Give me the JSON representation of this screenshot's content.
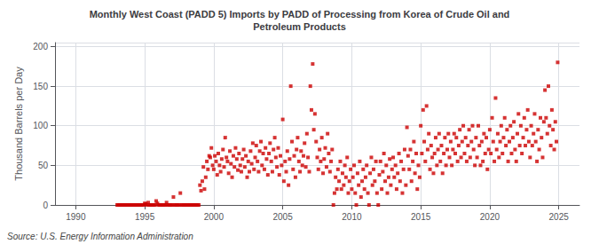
{
  "chart_data": {
    "type": "scatter",
    "title": "Monthly West Coast (PADD 5) Imports by PADD of Processing from Korea of Crude Oil and\nPetroleum Products",
    "ylabel": "Thousand Barrels per Day",
    "annotations": [
      "Source: U.S. Energy Information Administration"
    ],
    "color": "#cc0000",
    "marker": "square",
    "grid": true,
    "xlim": [
      1988.5,
      2026.5
    ],
    "ylim": [
      0,
      205
    ],
    "xticks": [
      1990,
      1995,
      2000,
      2005,
      2010,
      2015,
      2020,
      2025
    ],
    "yticks": [
      0,
      50,
      100,
      150,
      200
    ],
    "x": [
      1993.0,
      1993.08,
      1993.17,
      1993.25,
      1993.33,
      1993.42,
      1993.5,
      1993.58,
      1993.67,
      1993.75,
      1993.83,
      1993.92,
      1994.0,
      1994.08,
      1994.17,
      1994.25,
      1994.33,
      1994.42,
      1994.5,
      1994.58,
      1994.67,
      1994.75,
      1994.83,
      1994.92,
      1995.0,
      1995.08,
      1995.17,
      1995.25,
      1995.33,
      1995.42,
      1995.5,
      1995.58,
      1995.67,
      1995.75,
      1995.83,
      1995.92,
      1996.0,
      1996.08,
      1996.17,
      1996.25,
      1996.33,
      1996.42,
      1996.5,
      1996.58,
      1996.67,
      1996.75,
      1996.83,
      1996.92,
      1997.0,
      1997.08,
      1997.17,
      1997.25,
      1997.33,
      1997.42,
      1997.5,
      1997.58,
      1997.67,
      1997.75,
      1997.83,
      1997.92,
      1998.0,
      1998.08,
      1998.17,
      1998.25,
      1998.33,
      1998.42,
      1998.5,
      1998.58,
      1998.67,
      1998.75,
      1998.83,
      1998.92,
      1999.0,
      1999.08,
      1999.17,
      1999.25,
      1999.33,
      1999.42,
      1999.5,
      1999.58,
      1999.67,
      1999.75,
      1999.83,
      1999.92,
      2000.0,
      2000.08,
      2000.17,
      2000.25,
      2000.33,
      2000.42,
      2000.5,
      2000.58,
      2000.67,
      2000.75,
      2000.83,
      2000.92,
      2001.0,
      2001.08,
      2001.17,
      2001.25,
      2001.33,
      2001.42,
      2001.5,
      2001.58,
      2001.67,
      2001.75,
      2001.83,
      2001.92,
      2002.0,
      2002.08,
      2002.17,
      2002.25,
      2002.33,
      2002.42,
      2002.5,
      2002.58,
      2002.67,
      2002.75,
      2002.83,
      2002.92,
      2003.0,
      2003.08,
      2003.17,
      2003.25,
      2003.33,
      2003.42,
      2003.5,
      2003.58,
      2003.67,
      2003.75,
      2003.83,
      2003.92,
      2004.0,
      2004.08,
      2004.17,
      2004.25,
      2004.33,
      2004.42,
      2004.5,
      2004.58,
      2004.67,
      2004.75,
      2004.83,
      2004.92,
      2005.0,
      2005.08,
      2005.17,
      2005.25,
      2005.33,
      2005.42,
      2005.5,
      2005.58,
      2005.67,
      2005.75,
      2005.83,
      2005.92,
      2006.0,
      2006.08,
      2006.17,
      2006.25,
      2006.33,
      2006.42,
      2006.5,
      2006.58,
      2006.67,
      2006.75,
      2006.83,
      2006.92,
      2007.0,
      2007.08,
      2007.17,
      2007.25,
      2007.33,
      2007.42,
      2007.5,
      2007.58,
      2007.67,
      2007.75,
      2007.83,
      2007.92,
      2008.0,
      2008.08,
      2008.17,
      2008.25,
      2008.33,
      2008.42,
      2008.5,
      2008.58,
      2008.67,
      2008.75,
      2008.83,
      2008.92,
      2009.0,
      2009.08,
      2009.17,
      2009.25,
      2009.33,
      2009.42,
      2009.5,
      2009.58,
      2009.67,
      2009.75,
      2009.83,
      2009.92,
      2010.0,
      2010.08,
      2010.17,
      2010.25,
      2010.33,
      2010.42,
      2010.5,
      2010.58,
      2010.67,
      2010.75,
      2010.83,
      2010.92,
      2011.0,
      2011.08,
      2011.17,
      2011.25,
      2011.33,
      2011.42,
      2011.5,
      2011.58,
      2011.67,
      2011.75,
      2011.83,
      2011.92,
      2012.0,
      2012.08,
      2012.17,
      2012.25,
      2012.33,
      2012.42,
      2012.5,
      2012.58,
      2012.67,
      2012.75,
      2012.83,
      2012.92,
      2013.0,
      2013.08,
      2013.17,
      2013.25,
      2013.33,
      2013.42,
      2013.5,
      2013.58,
      2013.67,
      2013.75,
      2013.83,
      2013.92,
      2014.0,
      2014.08,
      2014.17,
      2014.25,
      2014.33,
      2014.42,
      2014.5,
      2014.58,
      2014.67,
      2014.75,
      2014.83,
      2014.92,
      2015.0,
      2015.08,
      2015.17,
      2015.25,
      2015.33,
      2015.42,
      2015.5,
      2015.58,
      2015.67,
      2015.75,
      2015.83,
      2015.92,
      2016.0,
      2016.08,
      2016.17,
      2016.25,
      2016.33,
      2016.42,
      2016.5,
      2016.58,
      2016.67,
      2016.75,
      2016.83,
      2016.92,
      2017.0,
      2017.08,
      2017.17,
      2017.25,
      2017.33,
      2017.42,
      2017.5,
      2017.58,
      2017.67,
      2017.75,
      2017.83,
      2017.92,
      2018.0,
      2018.08,
      2018.17,
      2018.25,
      2018.33,
      2018.42,
      2018.5,
      2018.58,
      2018.67,
      2018.75,
      2018.83,
      2018.92,
      2019.0,
      2019.08,
      2019.17,
      2019.25,
      2019.33,
      2019.42,
      2019.5,
      2019.58,
      2019.67,
      2019.75,
      2019.83,
      2019.92,
      2020.0,
      2020.08,
      2020.17,
      2020.25,
      2020.33,
      2020.42,
      2020.5,
      2020.58,
      2020.67,
      2020.75,
      2020.83,
      2020.92,
      2021.0,
      2021.08,
      2021.17,
      2021.25,
      2021.33,
      2021.42,
      2021.5,
      2021.58,
      2021.67,
      2021.75,
      2021.83,
      2021.92,
      2022.0,
      2022.08,
      2022.17,
      2022.25,
      2022.33,
      2022.42,
      2022.5,
      2022.58,
      2022.67,
      2022.75,
      2022.83,
      2022.92,
      2023.0,
      2023.08,
      2023.17,
      2023.25,
      2023.33,
      2023.42,
      2023.5,
      2023.58,
      2023.67,
      2023.75,
      2023.83,
      2023.92,
      2024.0,
      2024.08,
      2024.17,
      2024.25,
      2024.33,
      2024.42,
      2024.5,
      2024.58,
      2024.67,
      2024.75,
      2024.83,
      2024.92
    ],
    "values": [
      0,
      0,
      0,
      0,
      0,
      0,
      0,
      0,
      0,
      0,
      0,
      0,
      0,
      0,
      0,
      0,
      0,
      0,
      0,
      0,
      0,
      0,
      0,
      0,
      2,
      1,
      0,
      3,
      0,
      0,
      0,
      0,
      0,
      0,
      5,
      2,
      0,
      0,
      0,
      0,
      0,
      0,
      0,
      3,
      0,
      0,
      0,
      0,
      0,
      10,
      0,
      0,
      0,
      0,
      0,
      15,
      0,
      0,
      0,
      0,
      0,
      0,
      0,
      0,
      0,
      0,
      0,
      0,
      0,
      0,
      0,
      0,
      25,
      18,
      30,
      48,
      20,
      35,
      55,
      45,
      62,
      60,
      72,
      50,
      45,
      62,
      55,
      38,
      65,
      50,
      42,
      58,
      70,
      48,
      85,
      60,
      55,
      40,
      68,
      52,
      35,
      62,
      48,
      72,
      58,
      44,
      65,
      50,
      42,
      58,
      70,
      48,
      62,
      35,
      55,
      42,
      68,
      52,
      78,
      45,
      60,
      75,
      55,
      42,
      68,
      80,
      50,
      65,
      45,
      72,
      58,
      38,
      65,
      78,
      55,
      42,
      70,
      85,
      60,
      48,
      72,
      38,
      62,
      50,
      108,
      30,
      55,
      42,
      68,
      25,
      58,
      150,
      80,
      45,
      62,
      35,
      70,
      85,
      55,
      42,
      68,
      50,
      62,
      78,
      48,
      90,
      60,
      42,
      150,
      120,
      178,
      95,
      115,
      80,
      60,
      45,
      70,
      55,
      85,
      40,
      58,
      72,
      48,
      90,
      65,
      42,
      55,
      70,
      0,
      15,
      35,
      20,
      45,
      30,
      55,
      20,
      40,
      25,
      50,
      35,
      60,
      15,
      30,
      45,
      20,
      35,
      50,
      15,
      0,
      40,
      25,
      55,
      10,
      30,
      45,
      20,
      35,
      50,
      15,
      0,
      40,
      60,
      25,
      45,
      30,
      55,
      15,
      0,
      38,
      55,
      20,
      42,
      65,
      30,
      50,
      15,
      35,
      58,
      25,
      45,
      60,
      35,
      50,
      20,
      40,
      65,
      30,
      55,
      15,
      45,
      70,
      25,
      98,
      62,
      45,
      70,
      30,
      55,
      80,
      40,
      65,
      20,
      50,
      35,
      100,
      65,
      120,
      80,
      55,
      125,
      70,
      90,
      45,
      75,
      60,
      40,
      65,
      85,
      50,
      70,
      90,
      55,
      75,
      40,
      65,
      85,
      50,
      70,
      90,
      60,
      80,
      50,
      70,
      90,
      65,
      85,
      55,
      75,
      95,
      60,
      80,
      100,
      65,
      85,
      55,
      75,
      95,
      60,
      80,
      100,
      70,
      50,
      85,
      60,
      100,
      75,
      50,
      80,
      55,
      90,
      65,
      85,
      45,
      70,
      95,
      65,
      110,
      80,
      55,
      135,
      70,
      90,
      60,
      80,
      100,
      65,
      85,
      110,
      75,
      95,
      55,
      80,
      100,
      65,
      85,
      105,
      70,
      55,
      90,
      115,
      75,
      100,
      65,
      85,
      110,
      75,
      95,
      120,
      80,
      60,
      100,
      75,
      90,
      115,
      80,
      55,
      95,
      70,
      110,
      85,
      60,
      105,
      145,
      110,
      90,
      150,
      100,
      75,
      120,
      95,
      70,
      105,
      80,
      180
    ]
  }
}
